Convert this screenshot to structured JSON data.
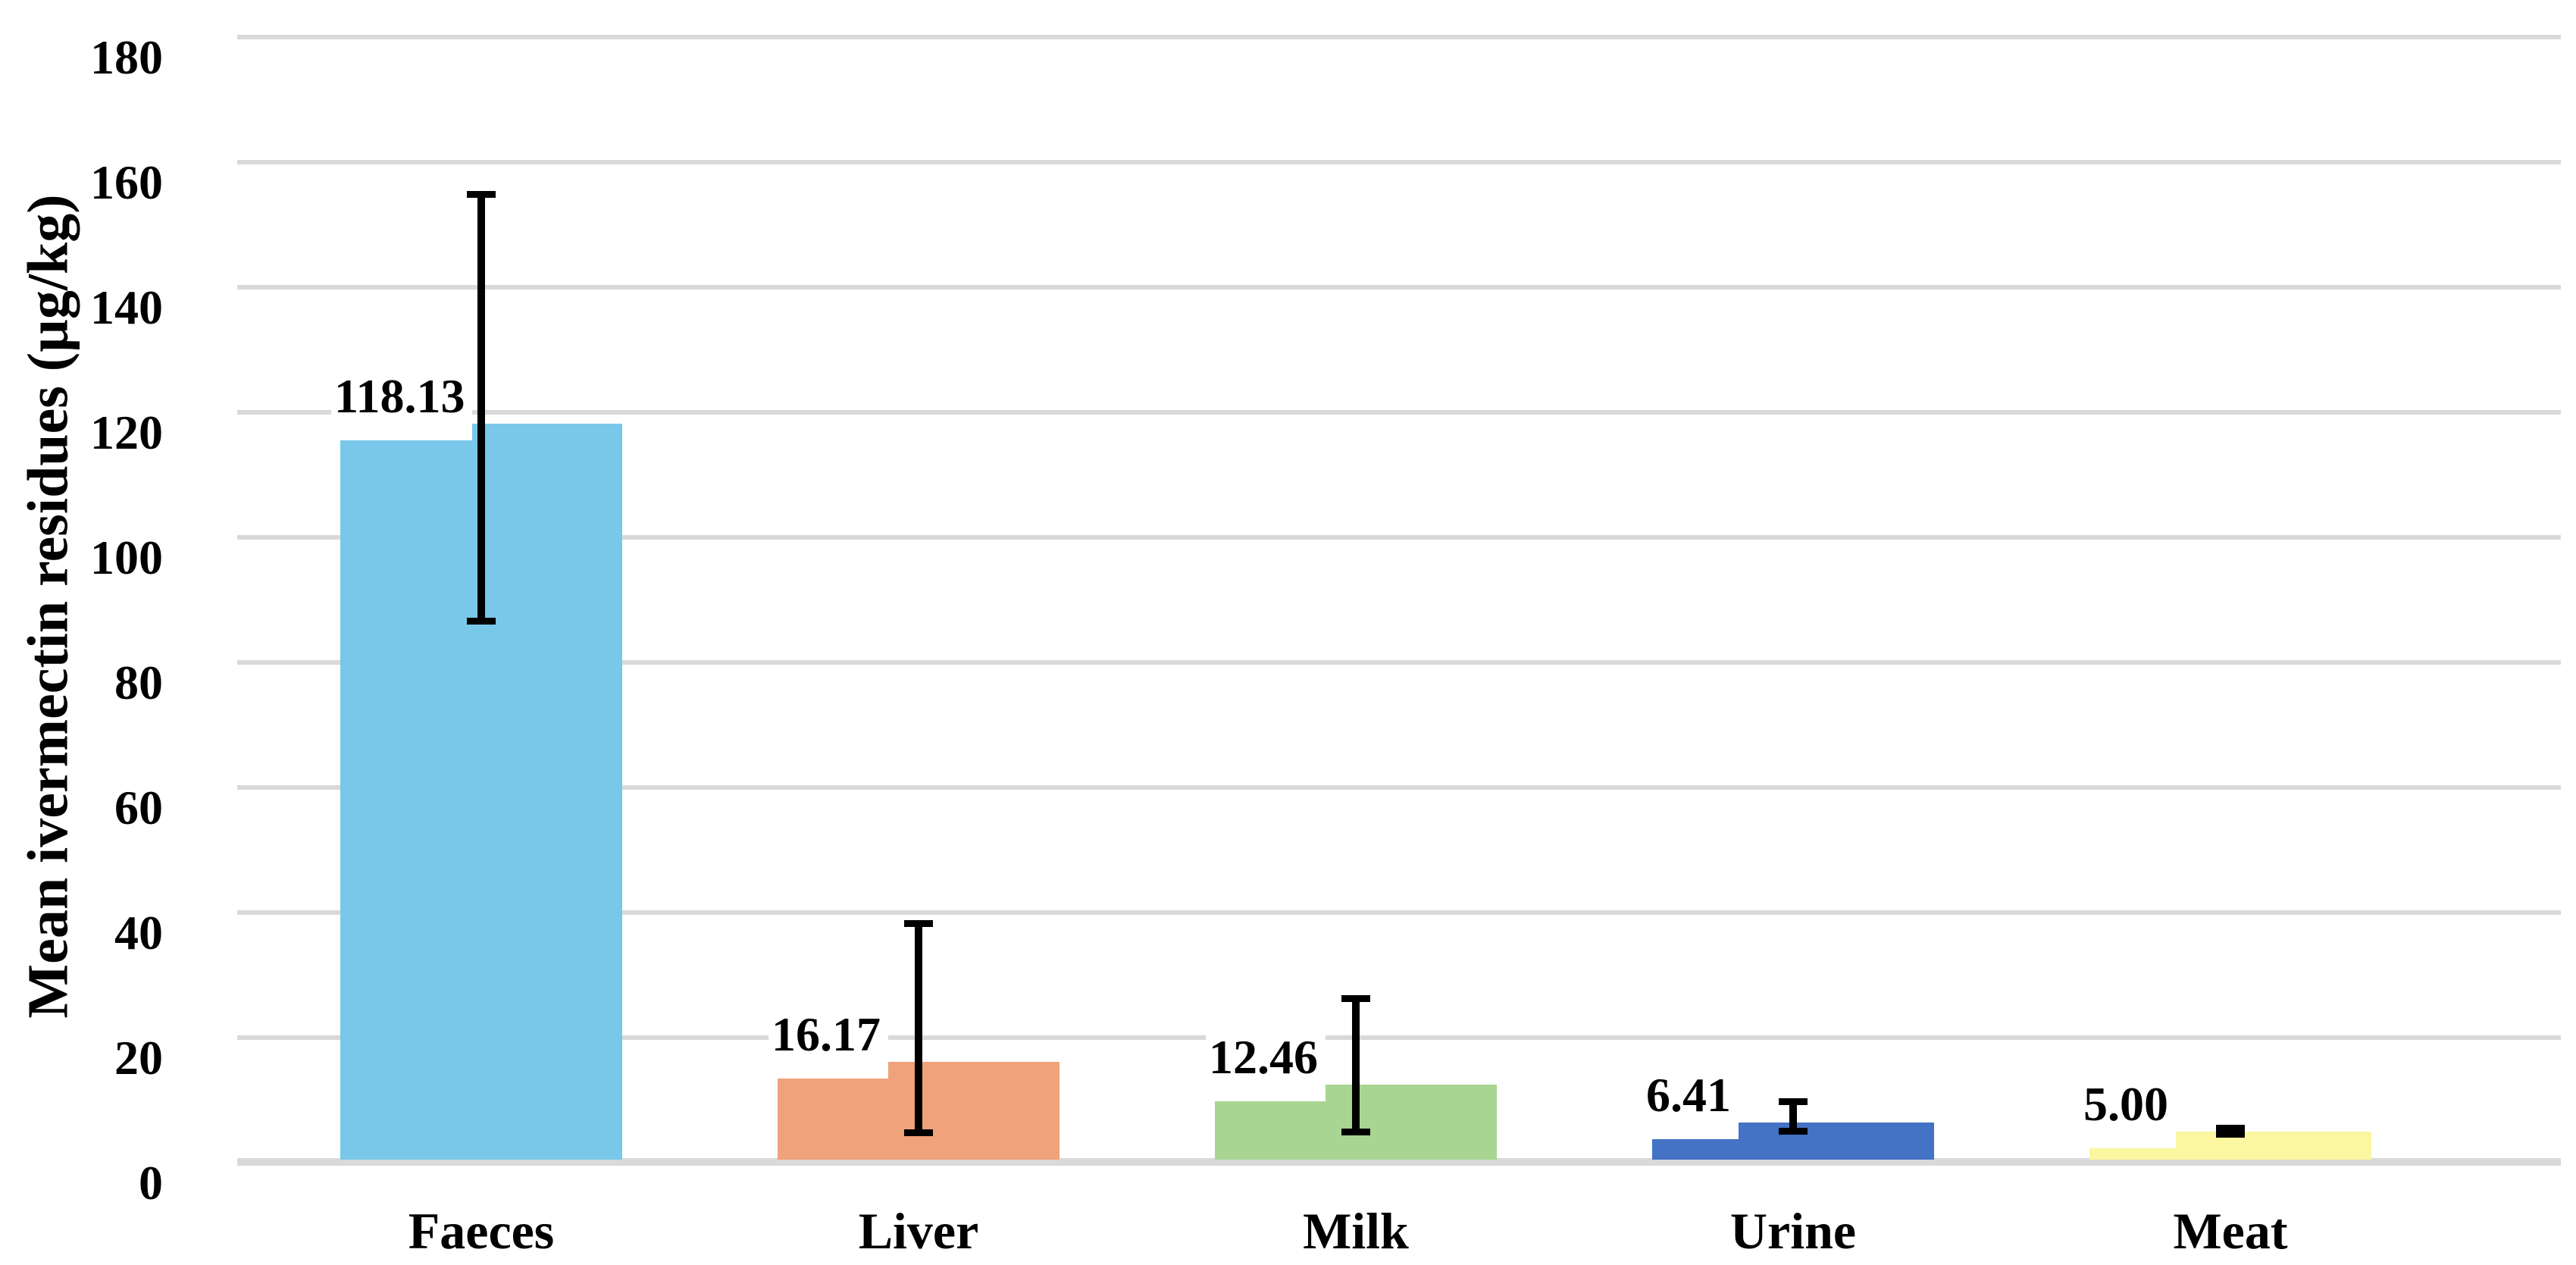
{
  "chart_data": {
    "type": "bar",
    "title": "",
    "xlabel": "",
    "ylabel": "Mean ivermectin residues (µg/kg)",
    "categories": [
      "Faeces",
      "Liver",
      "Milk",
      "Urine",
      "Meat"
    ],
    "values": [
      118.13,
      16.17,
      12.46,
      6.41,
      5.0
    ],
    "data_labels": [
      "118.13",
      "16.17",
      "12.46",
      "6.41",
      "5.00"
    ],
    "bar_colors": [
      "#79C8E9",
      "#F0A27A",
      "#A8D591",
      "#4472C4",
      "#FAF7A0"
    ],
    "error_bars": [
      {
        "high": 154.8,
        "low": 86.6
      },
      {
        "high": 38.2,
        "low": 4.8
      },
      {
        "high": 26.3,
        "low": 4.9
      },
      {
        "high": 9.7,
        "low": 5.0
      },
      {
        "high": 5.5,
        "low": 4.5
      }
    ],
    "ylim": [
      0,
      180
    ],
    "yticks": [
      0,
      20,
      40,
      60,
      80,
      100,
      120,
      140,
      160,
      180
    ],
    "grid": "horizontal",
    "legend_position": "none",
    "gridline_color": "#D9D9D9",
    "axis_line_color": "#D9D9D9",
    "error_bar_color": "#000000",
    "text_color": "#000000",
    "background_color": "#FFFFFF"
  }
}
